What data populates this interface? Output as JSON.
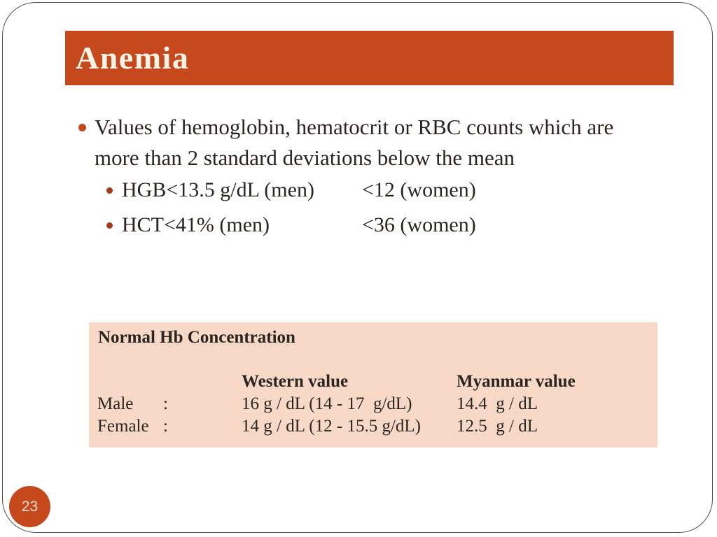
{
  "slide": {
    "title": "Anemia",
    "page_number": "23",
    "colors": {
      "accent_orange": "#C6491D",
      "sub_bullet_red": "#A43A1B",
      "table_background": "#F8D9C8",
      "body_text": "#2B2520",
      "frame_border": "#4F4F4F",
      "title_text": "#F9F2E7"
    },
    "bullets": {
      "main": {
        "lines": [
          "Values of hemoglobin, hematocrit or RBC counts which are",
          "more than 2 standard deviations below the mean"
        ]
      },
      "sub": [
        {
          "men": "HGB<13.5 g/dL (men)",
          "women": "<12 (women)"
        },
        {
          "men": "HCT<41% (men)",
          "women": "<36 (women)"
        }
      ]
    },
    "table": {
      "title": "Normal Hb Concentration",
      "columns": {
        "western": "Western value",
        "myanmar": "Myanmar value"
      },
      "rows": [
        {
          "label": "Male",
          "colon": ":",
          "western": "16 g / dL (14 - 17  g/dL)",
          "myanmar": "14.4  g / dL"
        },
        {
          "label": "Female",
          "colon": ":",
          "western": "14 g / dL (12 - 15.5 g/dL)",
          "myanmar": "12.5  g / dL"
        }
      ]
    }
  }
}
